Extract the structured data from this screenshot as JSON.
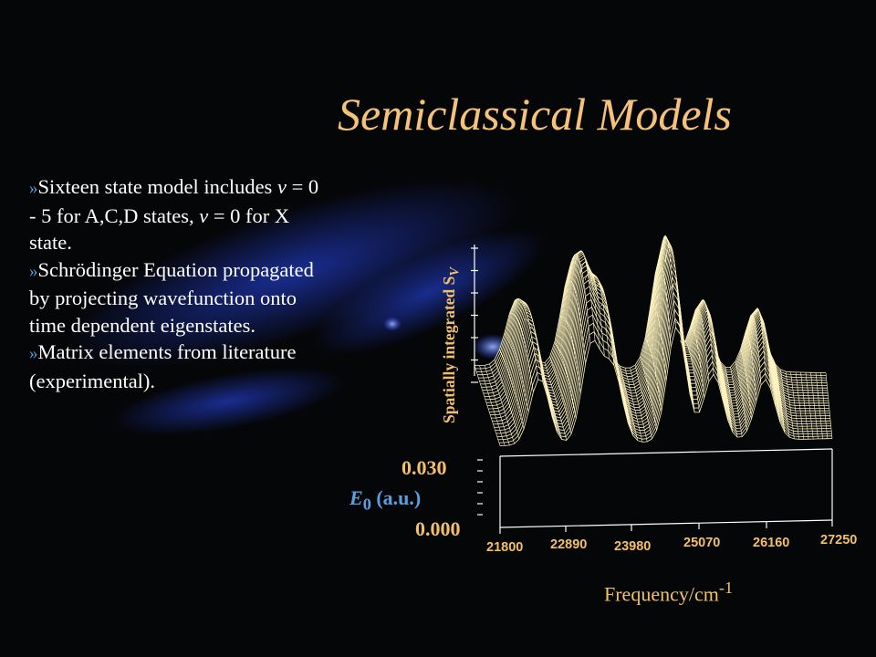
{
  "slide": {
    "title": "Semiclassical Models",
    "bullet_marker": "»",
    "bullets": [
      {
        "pre": "Sixteen state model includes ",
        "v1": "v",
        "mid": " = 0 - 5 for A,C,D states, ",
        "v2": "v",
        "post": " = 0 for X state."
      },
      {
        "text": "Schrödinger Equation propagated by projecting wavefunction onto time dependent eigenstates."
      },
      {
        "text": "Matrix elements from literature (experimental)."
      }
    ]
  },
  "chart_data": {
    "type": "surface",
    "title": "",
    "xlabel": "Frequency/cm",
    "xlabel_sup": "-1",
    "zlabel": "Spatially integrated S",
    "zlabel_sub": "V",
    "ylabel_sym": "E",
    "ylabel_sub": "0",
    "ylabel_unit": " (a.u.)",
    "x_ticks": [
      "21800",
      "22890",
      "23980",
      "25070",
      "26160",
      "27250"
    ],
    "y_ticks": [
      "0.030",
      "0.000"
    ],
    "xlim": [
      21800,
      27250
    ],
    "ylim": [
      0.0,
      0.03
    ],
    "peaks": [
      {
        "x": 22450,
        "height": 0.55
      },
      {
        "x": 23300,
        "height": 0.8
      },
      {
        "x": 23650,
        "height": 0.6
      },
      {
        "x": 24700,
        "height": 0.95
      },
      {
        "x": 25300,
        "height": 0.55
      },
      {
        "x": 26150,
        "height": 0.5
      }
    ],
    "colors": {
      "mesh": "#fff4c0",
      "text": "#f2c06a",
      "accent": "#5aa0e0"
    }
  }
}
